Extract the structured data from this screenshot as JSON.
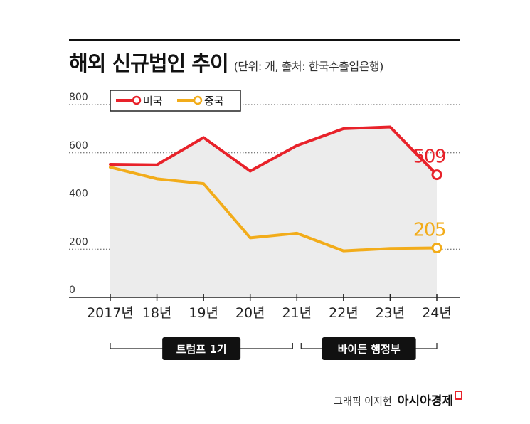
{
  "title": "해외 신규법인 추이",
  "subtitle": "(단위: 개, 출처: 한국수출입은행)",
  "credit": "그래픽 이지현",
  "logo": "아시아경제",
  "colors": {
    "us": "#e8222a",
    "china": "#f2ac1a",
    "area": "#ececec",
    "period_box": "#111111"
  },
  "chart_data": {
    "type": "line",
    "categories": [
      "2017년",
      "18년",
      "19년",
      "20년",
      "21년",
      "22년",
      "23년",
      "24년"
    ],
    "series": [
      {
        "name": "미국",
        "values": [
          552,
          550,
          663,
          524,
          630,
          700,
          707,
          509
        ],
        "end_label": "509"
      },
      {
        "name": "중국",
        "values": [
          540,
          492,
          472,
          247,
          266,
          193,
          203,
          205
        ],
        "end_label": "205"
      }
    ],
    "ylim": [
      0,
      800
    ],
    "yticks": [
      "0",
      "200",
      "400",
      "600",
      "800"
    ],
    "grid": true,
    "legend": "top-left",
    "periods": [
      {
        "label": "트럼프 1기",
        "from": "2017년",
        "to": "21년"
      },
      {
        "label": "바이든 행정부",
        "from": "21년",
        "to": "24년"
      }
    ]
  }
}
